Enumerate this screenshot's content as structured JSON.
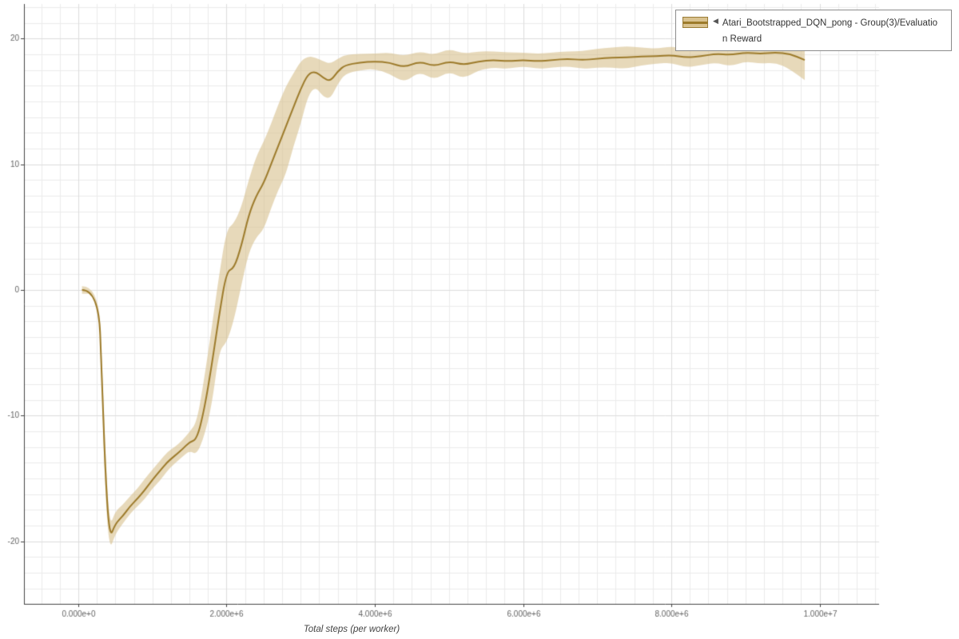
{
  "legend": {
    "collapse_icon": "◀",
    "label_line1": "Atari_Bootstrapped_DQN_pong - Group(3)/Evaluatio",
    "label_line2": "n Reward"
  },
  "colors": {
    "background": "#ffffff",
    "grid_minor": "#ebebeb",
    "grid_major": "#dddddd",
    "axis": "#444444",
    "tick_text": "#666666",
    "axis_label": "#444444",
    "legend_border": "#8c8c8c"
  },
  "chart_data": {
    "type": "line",
    "title": "",
    "xlabel": "Total steps (per worker)",
    "ylabel": "",
    "x_unit": 1000000,
    "xlim_e6": [
      -0.733,
      10.803
    ],
    "ylim": [
      -24.98,
      22.76
    ],
    "grid": {
      "on": true,
      "minor_x_e6": 0.25,
      "minor_y": 1.25
    },
    "legend_position": "top-right",
    "xticks": {
      "values_e6": [
        0,
        2,
        4,
        6,
        8,
        10
      ],
      "labels": [
        "0.000e+0",
        "2.000e+6",
        "4.000e+6",
        "6.000e+6",
        "8.000e+6",
        "1.000e+7"
      ]
    },
    "yticks": {
      "values": [
        -20,
        -10,
        0,
        10,
        20
      ],
      "labels": [
        "-20",
        "-10",
        "0",
        "10",
        "20"
      ]
    },
    "series": [
      {
        "name": "Atari_Bootstrapped_DQN_pong - Group(3)/Evaluation Reward",
        "color": "#9d7b2b",
        "band_color": "#d9c28f",
        "band_alpha": 0.62,
        "x_e6": [
          0.05,
          0.27,
          0.32,
          0.36,
          0.42,
          0.5,
          0.6,
          0.7,
          0.8,
          0.9,
          1.0,
          1.1,
          1.2,
          1.3,
          1.4,
          1.5,
          1.6,
          1.7,
          1.8,
          1.9,
          2.0,
          2.1,
          2.2,
          2.3,
          2.4,
          2.5,
          2.6,
          2.7,
          2.8,
          2.9,
          3.0,
          3.1,
          3.2,
          3.3,
          3.4,
          3.5,
          3.6,
          3.8,
          4.0,
          4.2,
          4.4,
          4.6,
          4.8,
          5.0,
          5.2,
          5.4,
          5.6,
          5.8,
          6.0,
          6.2,
          6.4,
          6.6,
          6.8,
          7.0,
          7.2,
          7.4,
          7.6,
          7.8,
          8.0,
          8.2,
          8.4,
          8.6,
          8.8,
          9.0,
          9.2,
          9.4,
          9.6,
          9.8
        ],
        "mean": [
          0.0,
          0.0,
          -7.0,
          -14.0,
          -19.8,
          -18.6,
          -18.0,
          -17.2,
          -16.6,
          -15.9,
          -15.1,
          -14.4,
          -13.7,
          -13.2,
          -12.7,
          -12.1,
          -11.9,
          -9.5,
          -6.0,
          -2.0,
          1.5,
          1.7,
          3.5,
          6.0,
          7.5,
          8.5,
          10.0,
          11.5,
          13.0,
          14.5,
          16.0,
          17.2,
          17.4,
          16.9,
          16.6,
          17.4,
          17.9,
          18.1,
          18.2,
          18.1,
          17.7,
          18.2,
          17.8,
          18.2,
          17.9,
          18.2,
          18.3,
          18.2,
          18.3,
          18.2,
          18.3,
          18.4,
          18.3,
          18.4,
          18.5,
          18.5,
          18.6,
          18.6,
          18.7,
          18.5,
          18.6,
          18.8,
          18.7,
          18.9,
          18.8,
          18.9,
          18.8,
          18.3
        ],
        "band_lo": [
          -0.3,
          -0.3,
          -8.2,
          -15.8,
          -20.8,
          -19.4,
          -18.6,
          -17.8,
          -17.2,
          -16.6,
          -15.8,
          -15.2,
          -14.4,
          -13.8,
          -13.3,
          -12.8,
          -13.1,
          -11.6,
          -9.2,
          -4.8,
          -4.2,
          -2.4,
          0.4,
          3.0,
          4.2,
          4.8,
          6.5,
          8.0,
          9.2,
          11.4,
          13.2,
          15.5,
          16.2,
          15.4,
          15.2,
          16.4,
          17.2,
          17.5,
          17.6,
          17.2,
          16.5,
          17.4,
          16.7,
          17.4,
          16.8,
          17.5,
          17.7,
          17.6,
          17.8,
          17.6,
          17.7,
          17.8,
          17.6,
          17.7,
          17.7,
          17.6,
          17.9,
          18.0,
          18.1,
          17.7,
          17.9,
          18.1,
          17.8,
          18.2,
          18.0,
          18.1,
          17.6,
          16.7
        ],
        "band_hi": [
          0.3,
          0.3,
          -5.8,
          -12.2,
          -18.9,
          -17.6,
          -17.1,
          -16.4,
          -15.8,
          -15.0,
          -14.3,
          -13.6,
          -12.9,
          -12.5,
          -12.0,
          -11.3,
          -10.5,
          -7.0,
          -3.0,
          1.2,
          4.8,
          5.3,
          6.6,
          8.8,
          10.6,
          11.8,
          13.2,
          14.8,
          16.2,
          17.2,
          18.2,
          18.6,
          18.5,
          18.2,
          18.0,
          18.4,
          18.7,
          18.8,
          18.8,
          18.9,
          18.6,
          19.0,
          18.7,
          19.2,
          18.8,
          19.0,
          19.0,
          18.9,
          18.9,
          18.8,
          18.9,
          19.0,
          19.0,
          19.2,
          19.3,
          19.4,
          19.3,
          19.2,
          19.4,
          19.2,
          19.4,
          19.6,
          19.5,
          19.7,
          19.5,
          19.7,
          19.9,
          19.2
        ]
      }
    ]
  }
}
